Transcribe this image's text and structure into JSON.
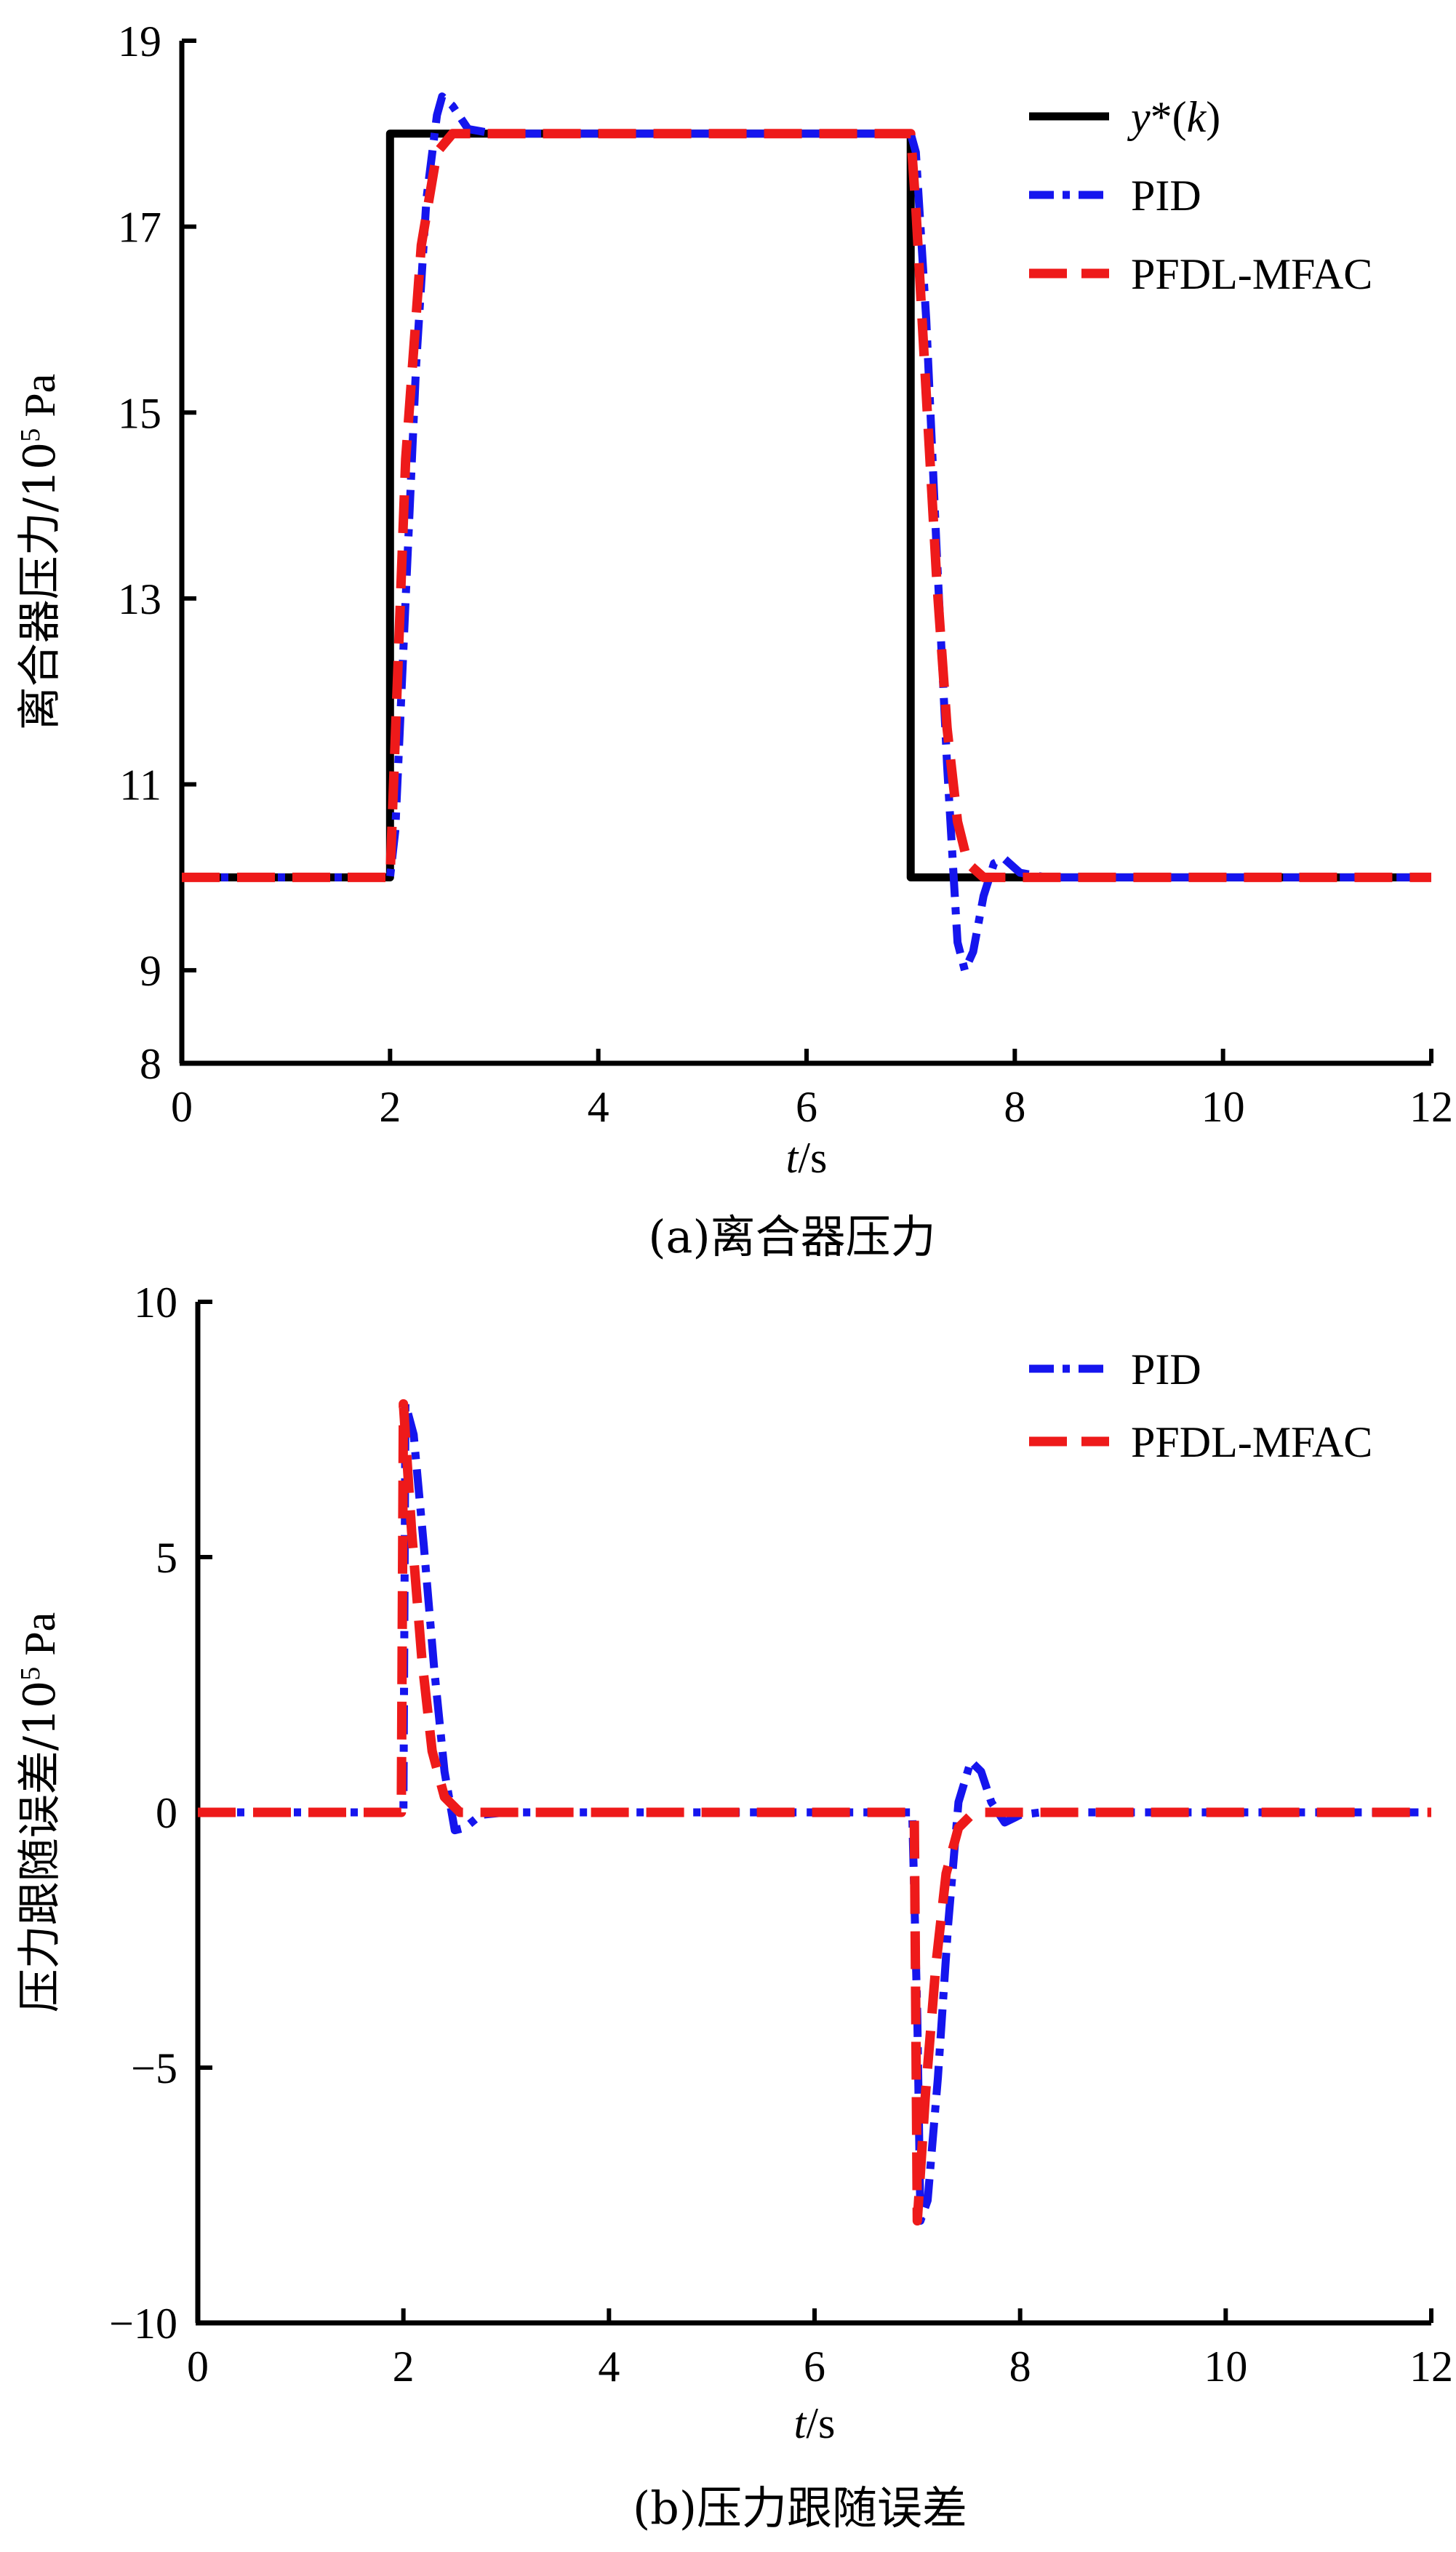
{
  "chart_data": [
    {
      "type": "line",
      "caption": "(a)离合器压力",
      "xlabel_italic": "t",
      "xlabel_rest": "/s",
      "ylabel_main": "离合器压力/10",
      "ylabel_sup": "5",
      "ylabel_unit": " Pa",
      "xlim": [
        0,
        12
      ],
      "ylim": [
        8,
        19
      ],
      "x_ticks": [
        "0",
        "2",
        "4",
        "6",
        "8",
        "10",
        "12"
      ],
      "y_ticks": [
        "8",
        "9",
        "11",
        "13",
        "15",
        "17",
        "19"
      ],
      "legend_position": "top-right",
      "series": [
        {
          "name_italic_1": "y",
          "name_mid": "*(",
          "name_italic_2": "k",
          "name_end": ")",
          "color": "#000000",
          "style": "solid",
          "points": [
            [
              0,
              10
            ],
            [
              2,
              10
            ],
            [
              2,
              18
            ],
            [
              7,
              18
            ],
            [
              7,
              10
            ],
            [
              12,
              10
            ]
          ]
        },
        {
          "name": "PID",
          "color": "#1515ee",
          "style": "dashdot",
          "points": [
            [
              0,
              10
            ],
            [
              2,
              10
            ],
            [
              2.05,
              10.5
            ],
            [
              2.15,
              13
            ],
            [
              2.25,
              15.5
            ],
            [
              2.35,
              17.3
            ],
            [
              2.45,
              18.2
            ],
            [
              2.5,
              18.4
            ],
            [
              2.6,
              18.3
            ],
            [
              2.75,
              18.05
            ],
            [
              3,
              18
            ],
            [
              6.9,
              18
            ],
            [
              7.0,
              18
            ],
            [
              7.05,
              17.8
            ],
            [
              7.15,
              16
            ],
            [
              7.25,
              13.5
            ],
            [
              7.35,
              11.2
            ],
            [
              7.45,
              9.3
            ],
            [
              7.52,
              9.0
            ],
            [
              7.6,
              9.2
            ],
            [
              7.7,
              9.8
            ],
            [
              7.8,
              10.15
            ],
            [
              7.9,
              10.2
            ],
            [
              8.05,
              10.05
            ],
            [
              8.3,
              10
            ],
            [
              12,
              10
            ]
          ]
        },
        {
          "name": "PFDL-MFAC",
          "color": "#ee1a1a",
          "style": "dash",
          "points": [
            [
              0,
              10
            ],
            [
              2,
              10
            ],
            [
              2.05,
              11.5
            ],
            [
              2.15,
              14.5
            ],
            [
              2.3,
              16.8
            ],
            [
              2.45,
              17.8
            ],
            [
              2.6,
              18.0
            ],
            [
              3,
              18
            ],
            [
              6.9,
              18
            ],
            [
              7.0,
              18
            ],
            [
              7.05,
              17.2
            ],
            [
              7.15,
              15.2
            ],
            [
              7.25,
              13.2
            ],
            [
              7.35,
              11.6
            ],
            [
              7.45,
              10.6
            ],
            [
              7.55,
              10.15
            ],
            [
              7.7,
              10
            ],
            [
              12,
              10
            ]
          ]
        }
      ]
    },
    {
      "type": "line",
      "caption": "(b)压力跟随误差",
      "xlabel_italic": "t",
      "xlabel_rest": "/s",
      "ylabel_main": "压力跟随误差/10",
      "ylabel_sup": "5",
      "ylabel_unit": " Pa",
      "xlim": [
        0,
        12
      ],
      "ylim": [
        -10,
        10
      ],
      "x_ticks": [
        "0",
        "2",
        "4",
        "6",
        "8",
        "10",
        "12"
      ],
      "y_ticks": [
        "−10",
        "−5",
        "0",
        "5",
        "10"
      ],
      "legend_position": "top-right",
      "series": [
        {
          "name": "PID",
          "color": "#1515ee",
          "style": "dashdot",
          "points": [
            [
              0,
              0
            ],
            [
              2,
              0
            ],
            [
              2.02,
              8
            ],
            [
              2.1,
              7.4
            ],
            [
              2.2,
              5.2
            ],
            [
              2.3,
              2.8
            ],
            [
              2.4,
              0.8
            ],
            [
              2.5,
              -0.35
            ],
            [
              2.6,
              -0.3
            ],
            [
              2.75,
              -0.05
            ],
            [
              3,
              0
            ],
            [
              6.95,
              0
            ],
            [
              7.0,
              -4
            ],
            [
              7.03,
              -8.0
            ],
            [
              7.1,
              -7.6
            ],
            [
              7.2,
              -5.2
            ],
            [
              7.3,
              -2.2
            ],
            [
              7.4,
              0.2
            ],
            [
              7.52,
              1.0
            ],
            [
              7.62,
              0.8
            ],
            [
              7.72,
              0.2
            ],
            [
              7.85,
              -0.2
            ],
            [
              8.0,
              -0.05
            ],
            [
              8.2,
              0
            ],
            [
              12,
              0
            ]
          ]
        },
        {
          "name": "PFDL-MFAC",
          "color": "#ee1a1a",
          "style": "dash",
          "points": [
            [
              0,
              0
            ],
            [
              1.98,
              0
            ],
            [
              2.0,
              8
            ],
            [
              2.08,
              5.5
            ],
            [
              2.18,
              3.0
            ],
            [
              2.28,
              1.2
            ],
            [
              2.4,
              0.3
            ],
            [
              2.55,
              0
            ],
            [
              6.97,
              0
            ],
            [
              7.0,
              -8
            ],
            [
              7.08,
              -5.5
            ],
            [
              7.18,
              -3.0
            ],
            [
              7.28,
              -1.2
            ],
            [
              7.4,
              -0.3
            ],
            [
              7.55,
              0
            ],
            [
              12,
              0
            ]
          ]
        }
      ]
    }
  ]
}
